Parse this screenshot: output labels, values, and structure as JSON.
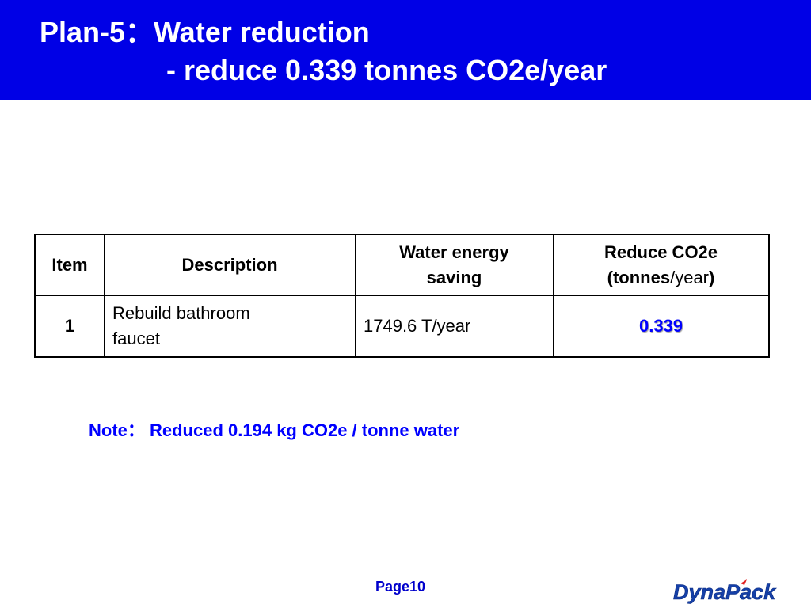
{
  "title": {
    "line1": "Plan-5：Water reduction",
    "line2": "- reduce 0.339 tonnes CO2e/year"
  },
  "table": {
    "headers": {
      "item": "Item",
      "description": "Description",
      "water_line1": "Water energy",
      "water_line2": "saving",
      "co2_line1": "Reduce CO2e",
      "co2_open": "(",
      "co2_unit_bold": "tonnes",
      "co2_unit_normal": "/year",
      "co2_close": ")"
    },
    "rows": [
      {
        "item": "1",
        "description_line1": "Rebuild bathroom",
        "description_line2": "faucet",
        "water_saving": "1749.6 T/year",
        "co2_reduce": "0.339"
      }
    ]
  },
  "note": "Note：  Reduced 0.194 kg CO2e / tonne water",
  "footer": {
    "page": "Page10",
    "logo_text": "DynaPack"
  },
  "colors": {
    "title_band": "#0000e6",
    "accent_blue": "#0000ff",
    "logo_blue": "#1540a8",
    "logo_red": "#e02020"
  }
}
